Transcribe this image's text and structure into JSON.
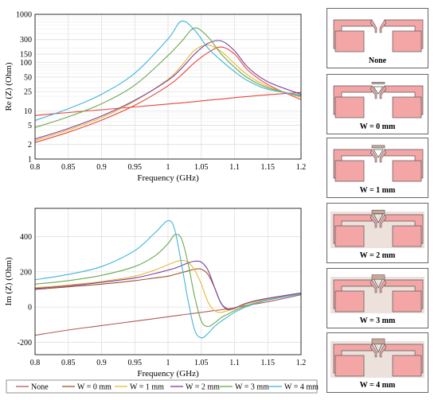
{
  "colors": {
    "patch": "#f4a6a6",
    "patch_edge": "#555555",
    "bridge": "#c9a897"
  },
  "legend": {
    "entries": [
      {
        "label": "None",
        "color": "#b25a5a"
      },
      {
        "label": "W = 0 mm",
        "color": "#a0522d"
      },
      {
        "label": "W = 1 mm",
        "color": "#e8b830"
      },
      {
        "label": "W = 2 mm",
        "color": "#7b3fa0"
      },
      {
        "label": "W = 3 mm",
        "color": "#6aa84f"
      },
      {
        "label": "W = 4 mm",
        "color": "#3fb5d6"
      }
    ]
  },
  "panels": [
    {
      "label": "None",
      "bridge": 0
    },
    {
      "label": "W = 0 mm",
      "bridge": 1
    },
    {
      "label": "W = 1 mm",
      "bridge": 2
    },
    {
      "label": "W = 2 mm",
      "bridge": 3
    },
    {
      "label": "W = 3 mm",
      "bridge": 4
    },
    {
      "label": "W = 4 mm",
      "bridge": 5
    }
  ],
  "chart_data": [
    {
      "type": "line",
      "title": "",
      "xlabel": "Frequency (GHz)",
      "ylabel": "Re (Z) (Ohm)",
      "yscale": "log",
      "xlim": [
        0.8,
        1.2
      ],
      "ylim": [
        1,
        1000
      ],
      "xticks": [
        0.8,
        0.85,
        0.9,
        0.95,
        1,
        1.05,
        1.1,
        1.15,
        1.2
      ],
      "xtick_labels": [
        "0.8",
        "0.85",
        "0.9",
        "0.95",
        "1",
        "1.05",
        "1.1",
        "1.15",
        "1.2"
      ],
      "yticks": [
        1,
        2,
        5,
        10,
        25,
        50,
        100,
        150,
        300,
        1000
      ],
      "ytick_labels": [
        "1",
        "2",
        "5",
        "10",
        "25",
        "50",
        "100",
        "150",
        "300",
        "1000"
      ],
      "grid": true,
      "x": [
        0.8,
        0.85,
        0.9,
        0.95,
        1.0,
        1.02,
        1.04,
        1.06,
        1.08,
        1.1,
        1.12,
        1.15,
        1.2
      ],
      "series": [
        {
          "name": "None",
          "color": "#e8453c",
          "values": [
            8,
            9.2,
            10.5,
            12,
            13.8,
            14.6,
            15.5,
            16.5,
            17.5,
            18.7,
            19.8,
            21.5,
            24
          ]
        },
        {
          "name": "W = 0 mm",
          "color": "#e8453c",
          "values": [
            2.2,
            3.6,
            6.4,
            13,
            33,
            55,
            100,
            160,
            210,
            150,
            70,
            35,
            17
          ]
        },
        {
          "name": "W = 1 mm",
          "color": "#e8b830",
          "values": [
            2.4,
            4,
            7.2,
            16,
            45,
            85,
            180,
            230,
            170,
            95,
            55,
            32,
            19
          ]
        },
        {
          "name": "W = 2 mm",
          "color": "#7b3fa0",
          "values": [
            2.6,
            4.3,
            7.8,
            16.5,
            43,
            75,
            150,
            250,
            280,
            175,
            80,
            40,
            22
          ]
        },
        {
          "name": "W = 3 mm",
          "color": "#6aa84f",
          "values": [
            4.5,
            7.5,
            14,
            34,
            140,
            270,
            520,
            340,
            150,
            80,
            48,
            30,
            20
          ]
        },
        {
          "name": "W = 4 mm",
          "color": "#3fb5d6",
          "values": [
            6.3,
            11,
            22,
            60,
            310,
            720,
            470,
            200,
            110,
            65,
            42,
            28,
            21
          ]
        }
      ]
    },
    {
      "type": "line",
      "title": "",
      "xlabel": "Frequency (GHz)",
      "ylabel": "Im (Z) (Ohm)",
      "xlim": [
        0.8,
        1.2
      ],
      "ylim": [
        -270,
        560
      ],
      "xticks": [
        0.8,
        0.85,
        0.9,
        0.95,
        1,
        1.05,
        1.1,
        1.15,
        1.2
      ],
      "xtick_labels": [
        "0.8",
        "0.85",
        "0.9",
        "0.95",
        "1",
        "1.05",
        "1.1",
        "1.15",
        "1.2"
      ],
      "yticks": [
        -200,
        0,
        200,
        400
      ],
      "ytick_labels": [
        "-200",
        "0",
        "200",
        "400"
      ],
      "grid": true,
      "x": [
        0.8,
        0.85,
        0.9,
        0.95,
        0.98,
        1.0,
        1.01,
        1.02,
        1.03,
        1.04,
        1.05,
        1.06,
        1.07,
        1.08,
        1.09,
        1.1,
        1.12,
        1.15,
        1.2
      ],
      "series": [
        {
          "name": "None",
          "color": "#b25a5a",
          "values": [
            -160,
            -130,
            -105,
            -80,
            -65,
            -55,
            -50,
            -45,
            -40,
            -35,
            -30,
            -25,
            -20,
            -15,
            -10,
            -5,
            10,
            30,
            70
          ]
        },
        {
          "name": "W = 0 mm",
          "color": "#a0522d",
          "values": [
            100,
            115,
            130,
            150,
            165,
            175,
            185,
            195,
            205,
            215,
            215,
            185,
            110,
            20,
            -15,
            -5,
            20,
            45,
            75
          ]
        },
        {
          "name": "W = 1 mm",
          "color": "#e8b830",
          "values": [
            110,
            125,
            145,
            175,
            210,
            240,
            255,
            265,
            255,
            210,
            130,
            30,
            -20,
            -30,
            -20,
            -10,
            20,
            45,
            75
          ]
        },
        {
          "name": "W = 2 mm",
          "color": "#7b3fa0",
          "values": [
            105,
            120,
            140,
            165,
            190,
            210,
            220,
            235,
            250,
            260,
            255,
            210,
            110,
            20,
            -10,
            -5,
            25,
            50,
            80
          ]
        },
        {
          "name": "W = 3 mm",
          "color": "#6aa84f",
          "values": [
            130,
            150,
            180,
            230,
            290,
            360,
            410,
            390,
            250,
            60,
            -80,
            -110,
            -90,
            -60,
            -40,
            -20,
            10,
            40,
            75
          ]
        },
        {
          "name": "W = 4 mm",
          "color": "#3fb5d6",
          "values": [
            155,
            185,
            230,
            320,
            420,
            490,
            440,
            250,
            40,
            -130,
            -175,
            -150,
            -110,
            -80,
            -55,
            -30,
            5,
            40,
            75
          ]
        }
      ]
    }
  ]
}
